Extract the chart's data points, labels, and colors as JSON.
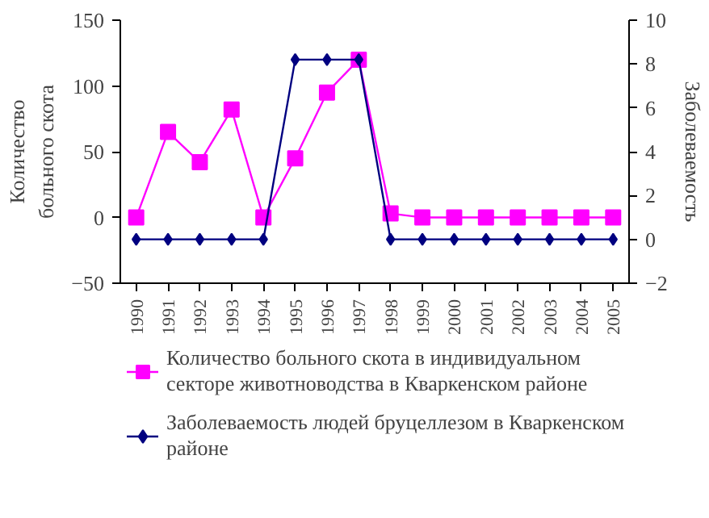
{
  "chart_data": {
    "type": "line",
    "ylabel": "Количество больного скота",
    "y2label": "Заболеваемость",
    "categories": [
      "1990",
      "1991",
      "1992",
      "1993",
      "1994",
      "1995",
      "1996",
      "1997",
      "1998",
      "1999",
      "2000",
      "2001",
      "2002",
      "2003",
      "2004",
      "2005"
    ],
    "series": [
      {
        "name": "Количество больного скота в индивидуальном секторе животноводства в Кваркенском районе",
        "color": "#ff00ff",
        "marker": "square",
        "values": [
          0,
          65,
          42,
          82,
          0,
          45,
          95,
          120,
          3,
          0,
          0,
          0,
          0,
          0,
          0,
          0
        ]
      },
      {
        "name": "Заболеваемость людей бруцеллезом в Кваркенском районе",
        "color": "#000080",
        "marker": "diamond",
        "axis": "y2",
        "values": [
          0,
          0,
          0,
          0,
          0,
          8.2,
          8.2,
          8.2,
          0,
          0,
          0,
          0,
          0,
          0,
          0,
          0
        ]
      }
    ],
    "ylim": [
      -50,
      150
    ],
    "yticks": [
      -50,
      0,
      50,
      100,
      150
    ],
    "y2lim": [
      -2,
      10
    ],
    "y2ticks": [
      -2,
      0,
      2,
      4,
      6,
      8,
      10
    ],
    "grid": false,
    "legend": "bottom"
  }
}
